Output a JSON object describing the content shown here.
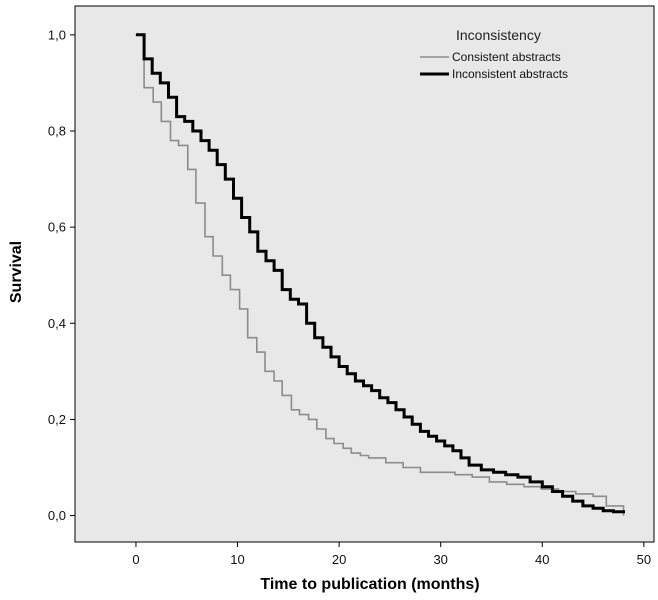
{
  "chart_data": {
    "type": "line",
    "step": true,
    "title": "",
    "xlabel": "Time to publication (months)",
    "ylabel": "Survival",
    "xlim": [
      -6,
      51
    ],
    "ylim": [
      -0.055,
      1.06
    ],
    "x_ticks": [
      0,
      10,
      20,
      30,
      40,
      50
    ],
    "x_tick_labels": [
      "0",
      "10",
      "20",
      "30",
      "40",
      "50"
    ],
    "y_ticks": [
      0.0,
      0.2,
      0.4,
      0.6,
      0.8,
      1.0
    ],
    "y_tick_labels": [
      "0,0",
      "0,2",
      "0,4",
      "0,6",
      "0,8",
      "1,0"
    ],
    "grid": false,
    "background": "#e8e8e8",
    "legend": {
      "title": "Inconsistency",
      "position": "top-right"
    },
    "series": [
      {
        "name": "Consistent abstracts",
        "color": "#8c8c8c",
        "width": "thin",
        "x": [
          0,
          0.8,
          1.7,
          2.5,
          3.4,
          4.2,
          5.1,
          5.9,
          6.8,
          7.6,
          8.5,
          9.3,
          10.2,
          11.0,
          11.9,
          12.7,
          13.6,
          14.4,
          15.3,
          16.1,
          17.0,
          17.8,
          18.7,
          19.5,
          20.4,
          21.2,
          22.1,
          22.9,
          24.6,
          26.3,
          28.0,
          29.7,
          31.4,
          33.1,
          34.8,
          36.5,
          38.2,
          39.9,
          41.6,
          43.3,
          45.0,
          46.3,
          48.0
        ],
        "y": [
          1.0,
          0.89,
          0.86,
          0.82,
          0.78,
          0.77,
          0.72,
          0.65,
          0.58,
          0.54,
          0.5,
          0.47,
          0.43,
          0.37,
          0.34,
          0.3,
          0.28,
          0.25,
          0.22,
          0.21,
          0.2,
          0.18,
          0.16,
          0.15,
          0.14,
          0.13,
          0.125,
          0.12,
          0.11,
          0.1,
          0.09,
          0.09,
          0.085,
          0.08,
          0.07,
          0.065,
          0.06,
          0.055,
          0.05,
          0.045,
          0.04,
          0.02,
          0.0
        ]
      },
      {
        "name": "Inconsistent abstracts",
        "color": "#000000",
        "width": "thick",
        "x": [
          0,
          0.8,
          1.6,
          2.4,
          3.2,
          4.0,
          4.8,
          5.6,
          6.4,
          7.2,
          8.0,
          8.8,
          9.6,
          10.4,
          11.2,
          12.0,
          12.8,
          13.6,
          14.4,
          15.2,
          16.0,
          16.8,
          17.6,
          18.4,
          19.2,
          20.0,
          20.8,
          21.6,
          22.4,
          23.2,
          24.0,
          24.8,
          25.6,
          26.4,
          27.2,
          28.0,
          28.8,
          29.6,
          30.4,
          31.2,
          32.0,
          32.8,
          34.0,
          35.2,
          36.4,
          37.6,
          38.8,
          40.0,
          41.0,
          42.0,
          43.0,
          44.0,
          45.0,
          46.0,
          47.0,
          48.0
        ],
        "y": [
          1.0,
          0.95,
          0.92,
          0.9,
          0.87,
          0.83,
          0.82,
          0.8,
          0.78,
          0.76,
          0.73,
          0.7,
          0.66,
          0.62,
          0.59,
          0.55,
          0.53,
          0.51,
          0.47,
          0.45,
          0.44,
          0.4,
          0.37,
          0.35,
          0.33,
          0.31,
          0.295,
          0.28,
          0.27,
          0.26,
          0.245,
          0.235,
          0.22,
          0.205,
          0.19,
          0.175,
          0.165,
          0.155,
          0.145,
          0.135,
          0.12,
          0.105,
          0.095,
          0.09,
          0.085,
          0.08,
          0.07,
          0.06,
          0.05,
          0.04,
          0.03,
          0.02,
          0.015,
          0.01,
          0.008,
          0.005
        ]
      }
    ]
  }
}
